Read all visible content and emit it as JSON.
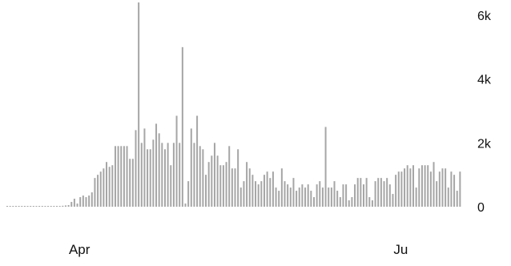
{
  "chart_data": {
    "type": "bar",
    "title": "",
    "xlabel": "",
    "ylabel": "",
    "ylim": [
      0,
      6500
    ],
    "y_ticks": [
      {
        "value": 0,
        "label": "0"
      },
      {
        "value": 2000,
        "label": "2k"
      },
      {
        "value": 4000,
        "label": "4k"
      },
      {
        "value": 6000,
        "label": "6k"
      }
    ],
    "y_axis_side": "right",
    "grid": false,
    "x_ticks": [
      {
        "index": 25,
        "label": "Apr"
      },
      {
        "index": 135,
        "label": "Ju"
      }
    ],
    "series": [
      {
        "values": [
          10,
          10,
          10,
          10,
          10,
          10,
          10,
          10,
          10,
          10,
          10,
          10,
          10,
          10,
          10,
          10,
          10,
          10,
          20,
          30,
          40,
          50,
          150,
          250,
          100,
          300,
          350,
          300,
          350,
          450,
          900,
          1000,
          1100,
          1200,
          1400,
          1250,
          1300,
          1900,
          1900,
          1900,
          1900,
          1900,
          1500,
          1500,
          2400,
          6400,
          2000,
          2450,
          1800,
          1800,
          2100,
          2600,
          2300,
          2000,
          1800,
          2000,
          1300,
          2000,
          2850,
          2000,
          5000,
          100,
          800,
          2450,
          2000,
          2850,
          1900,
          1800,
          1000,
          1400,
          1600,
          2000,
          1600,
          1300,
          1300,
          1400,
          1900,
          1200,
          1200,
          1800,
          600,
          800,
          1400,
          1200,
          1000,
          800,
          700,
          800,
          1000,
          1100,
          900,
          1100,
          600,
          500,
          1200,
          800,
          700,
          600,
          900,
          500,
          600,
          700,
          600,
          700,
          500,
          300,
          700,
          800,
          600,
          2500,
          600,
          600,
          800,
          500,
          300,
          700,
          700,
          200,
          300,
          700,
          900,
          900,
          700,
          900,
          300,
          200,
          800,
          900,
          900,
          800,
          900,
          700,
          400,
          1000,
          1100,
          1100,
          1200,
          1300,
          1200,
          1300,
          600,
          1200,
          1300,
          1300,
          1300,
          1100,
          1400,
          800,
          1100,
          1200,
          1200,
          600,
          1100,
          1000,
          500,
          1100
        ]
      }
    ],
    "color": "#a6a6a6"
  }
}
